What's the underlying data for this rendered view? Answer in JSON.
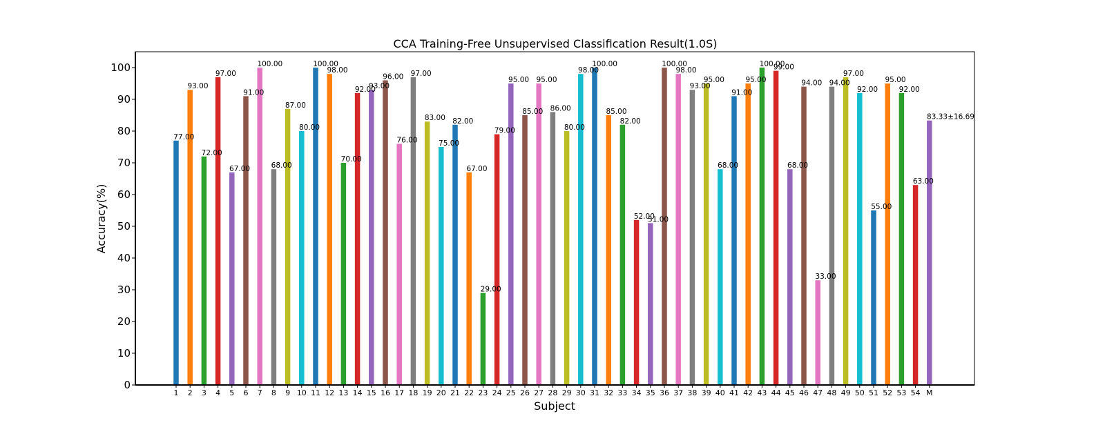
{
  "chart_data": {
    "type": "bar",
    "title": "CCA Training-Free Unsupervised Classification Result(1.0S)",
    "xlabel": "Subject",
    "ylabel": "Accuracy(%)",
    "ylim": [
      0,
      105
    ],
    "yticks": [
      0,
      10,
      20,
      30,
      40,
      50,
      60,
      70,
      80,
      90,
      100
    ],
    "grid": false,
    "legend": "none",
    "categories": [
      "1",
      "2",
      "3",
      "4",
      "5",
      "6",
      "7",
      "8",
      "9",
      "10",
      "11",
      "12",
      "13",
      "14",
      "15",
      "16",
      "17",
      "18",
      "19",
      "20",
      "21",
      "22",
      "23",
      "24",
      "25",
      "26",
      "27",
      "28",
      "29",
      "30",
      "31",
      "32",
      "33",
      "34",
      "35",
      "36",
      "37",
      "38",
      "39",
      "40",
      "41",
      "42",
      "43",
      "44",
      "45",
      "46",
      "47",
      "48",
      "49",
      "50",
      "51",
      "52",
      "53",
      "54",
      "M"
    ],
    "values": [
      77,
      93,
      72,
      97,
      67,
      91,
      100,
      68,
      87,
      80,
      100,
      98,
      70,
      92,
      93,
      96,
      76,
      97,
      83,
      75,
      82,
      67,
      29,
      79,
      95,
      85,
      95,
      86,
      80,
      98,
      100,
      85,
      82,
      52,
      51,
      100,
      98,
      93,
      95,
      68,
      91,
      95,
      100,
      99,
      68,
      94,
      33,
      94,
      97,
      92,
      55,
      95,
      92,
      63,
      83.33
    ],
    "value_labels": [
      "77.00",
      "93.00",
      "72.00",
      "97.00",
      "67.00",
      "91.00",
      "100.00",
      "68.00",
      "87.00",
      "80.00",
      "100.00",
      "98.00",
      "70.00",
      "92.00",
      "93.00",
      "96.00",
      "76.00",
      "97.00",
      "83.00",
      "75.00",
      "82.00",
      "67.00",
      "29.00",
      "79.00",
      "95.00",
      "85.00",
      "95.00",
      "86.00",
      "80.00",
      "98.00",
      "100.00",
      "85.00",
      "82.00",
      "52.00",
      "51.00",
      "100.00",
      "98.00",
      "93.00",
      "95.00",
      "68.00",
      "91.00",
      "95.00",
      "100.00",
      "99.00",
      "68.00",
      "94.00",
      "33.00",
      "94.00",
      "97.00",
      "92.00",
      "55.00",
      "95.00",
      "92.00",
      "63.00",
      "83.33±16.69"
    ],
    "mean_label_color": "#ff0000",
    "bar_colors": [
      "#1f77b4",
      "#ff7f0e",
      "#2ca02c",
      "#d62728",
      "#9467bd",
      "#8c564b",
      "#e377c2",
      "#7f7f7f",
      "#bcbd22",
      "#17becf"
    ]
  }
}
